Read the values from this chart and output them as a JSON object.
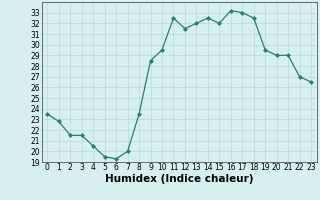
{
  "x": [
    0,
    1,
    2,
    3,
    4,
    5,
    6,
    7,
    8,
    9,
    10,
    11,
    12,
    13,
    14,
    15,
    16,
    17,
    18,
    19,
    20,
    21,
    22,
    23
  ],
  "y": [
    23.5,
    22.8,
    21.5,
    21.5,
    20.5,
    19.5,
    19.3,
    20.0,
    23.5,
    28.5,
    29.5,
    32.5,
    31.5,
    32.0,
    32.5,
    32.0,
    33.2,
    33.0,
    32.5,
    29.5,
    29.0,
    29.0,
    27.0,
    26.5
  ],
  "xlabel": "Humidex (Indice chaleur)",
  "ylim": [
    19,
    34
  ],
  "xlim": [
    -0.5,
    23.5
  ],
  "yticks": [
    19,
    20,
    21,
    22,
    23,
    24,
    25,
    26,
    27,
    28,
    29,
    30,
    31,
    32,
    33
  ],
  "xticks": [
    0,
    1,
    2,
    3,
    4,
    5,
    6,
    7,
    8,
    9,
    10,
    11,
    12,
    13,
    14,
    15,
    16,
    17,
    18,
    19,
    20,
    21,
    22,
    23
  ],
  "line_color": "#2e7d6e",
  "marker_color": "#2e7d6e",
  "bg_color": "#d6f0f0",
  "grid_color": "#b8dada",
  "label_fontsize": 7.5,
  "tick_fontsize": 5.5
}
